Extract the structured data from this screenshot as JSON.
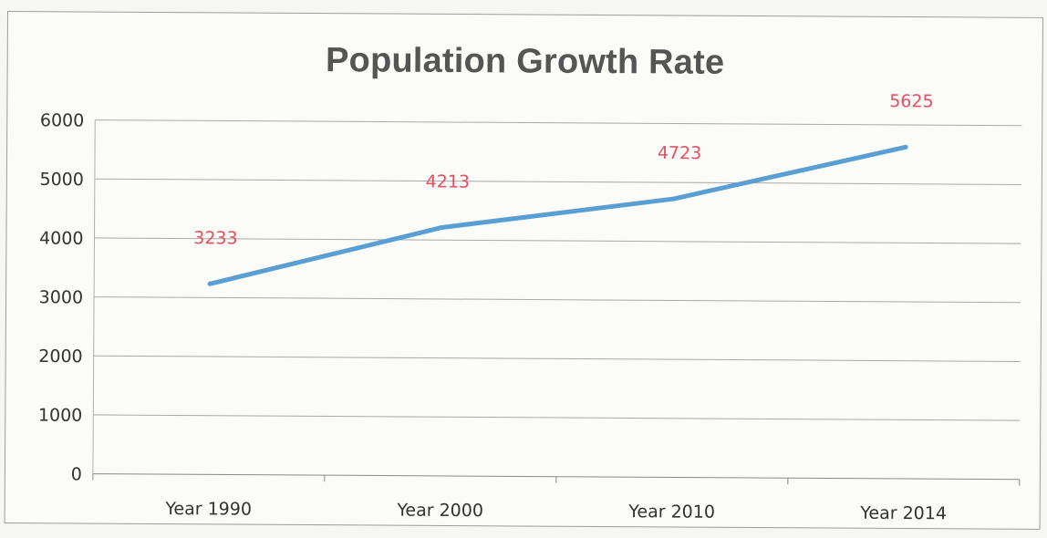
{
  "chart_data": {
    "type": "line",
    "title": "Population Growth Rate",
    "categories": [
      "Year 1990",
      "Year 2000",
      "Year 2010",
      "Year 2014"
    ],
    "series": [
      {
        "values": [
          3233,
          4213,
          4723,
          5625
        ],
        "color": "#5a9fd4"
      }
    ],
    "ylim": [
      0,
      6000
    ],
    "yticks": [
      0,
      1000,
      2000,
      3000,
      4000,
      5000,
      6000
    ],
    "xlabel": "",
    "ylabel": "",
    "grid": true,
    "data_label_color": "#e25060",
    "legend": "none"
  }
}
